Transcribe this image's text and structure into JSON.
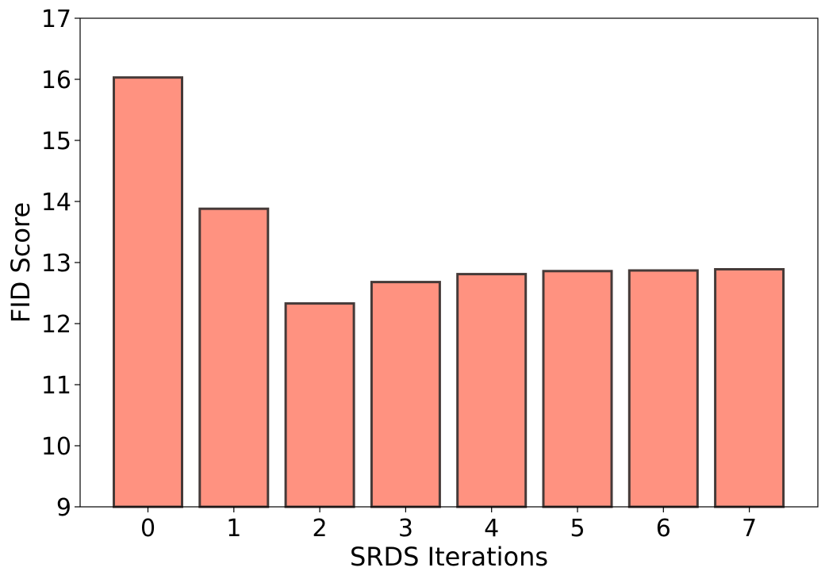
{
  "chart_data": {
    "type": "bar",
    "title": "",
    "xlabel": "SRDS Iterations",
    "ylabel": "FID Score",
    "categories": [
      "0",
      "1",
      "2",
      "3",
      "4",
      "5",
      "6",
      "7"
    ],
    "values": [
      16.03,
      13.88,
      12.33,
      12.68,
      12.81,
      12.86,
      12.87,
      12.89
    ],
    "ylim": [
      9,
      17
    ],
    "yticks": [
      "9",
      "10",
      "11",
      "12",
      "13",
      "14",
      "15",
      "16",
      "17"
    ],
    "grid": false,
    "legend": "none",
    "colors": {
      "bar_fill": "#ff9280",
      "bar_edge": "#453a38",
      "axis": "#000000"
    }
  }
}
